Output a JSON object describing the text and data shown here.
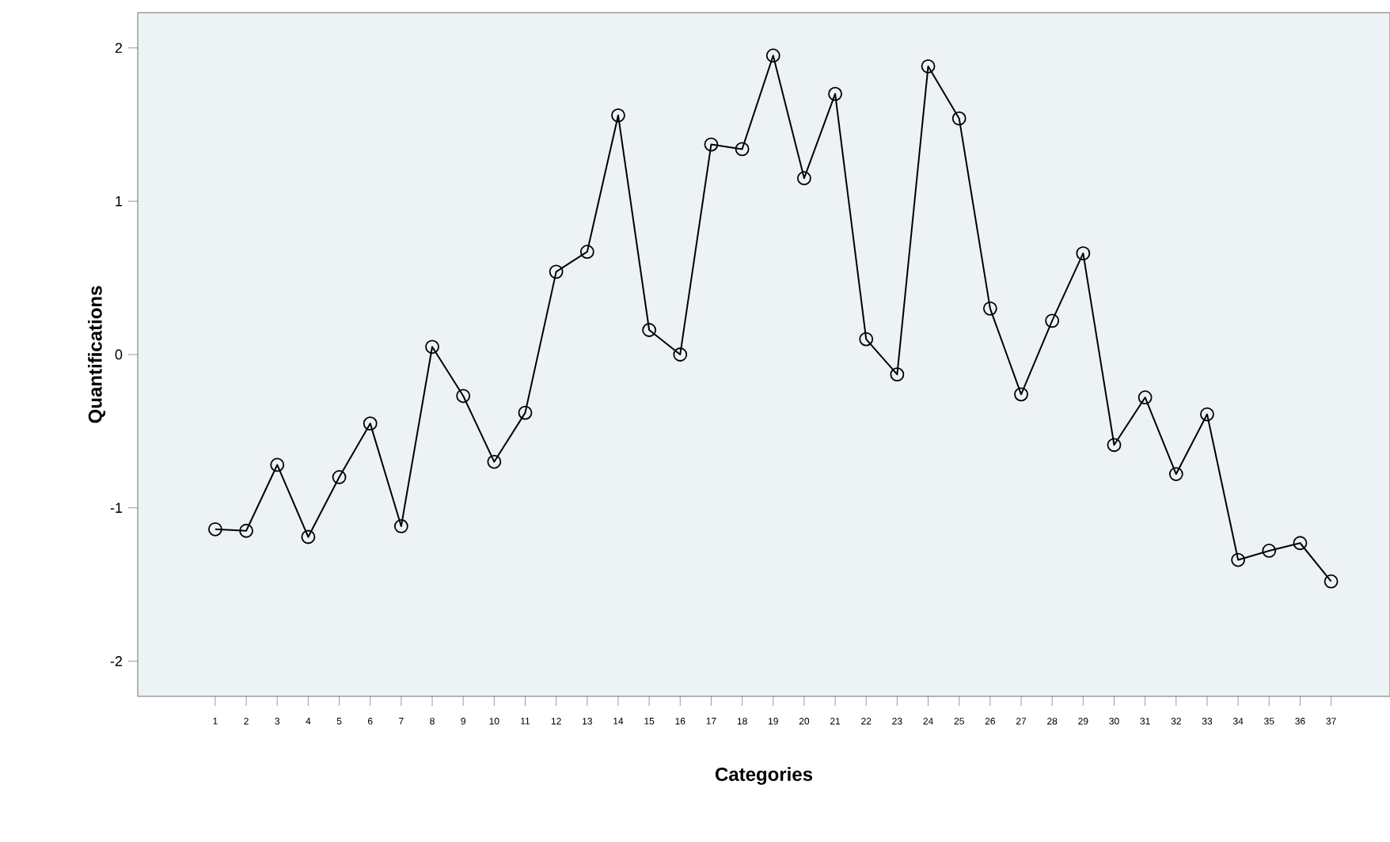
{
  "chart_data": {
    "type": "line",
    "xlabel": "Categories",
    "ylabel": "Quantifications",
    "categories": [
      "1",
      "2",
      "3",
      "4",
      "5",
      "6",
      "7",
      "8",
      "9",
      "10",
      "11",
      "12",
      "13",
      "14",
      "15",
      "16",
      "17",
      "18",
      "19",
      "20",
      "21",
      "22",
      "23",
      "24",
      "25",
      "26",
      "27",
      "28",
      "29",
      "30",
      "31",
      "32",
      "33",
      "34",
      "35",
      "36",
      "37"
    ],
    "values": [
      -1.14,
      -1.15,
      -0.72,
      -1.19,
      -0.8,
      -0.45,
      -1.12,
      0.05,
      -0.27,
      -0.7,
      -0.38,
      0.54,
      0.67,
      1.56,
      0.16,
      0.0,
      1.37,
      1.34,
      1.95,
      1.15,
      1.7,
      0.1,
      -0.13,
      1.88,
      1.54,
      0.3,
      -0.26,
      0.22,
      0.66,
      -0.59,
      -0.28,
      -0.78,
      -0.39,
      -1.34,
      -1.28,
      -1.23,
      -1.48
    ],
    "color": "#000000",
    "marker": "circle",
    "line_style": "solid",
    "ylim": [
      -2.23,
      2.23
    ],
    "yticks": [
      -2,
      -1,
      0,
      1,
      2
    ]
  }
}
